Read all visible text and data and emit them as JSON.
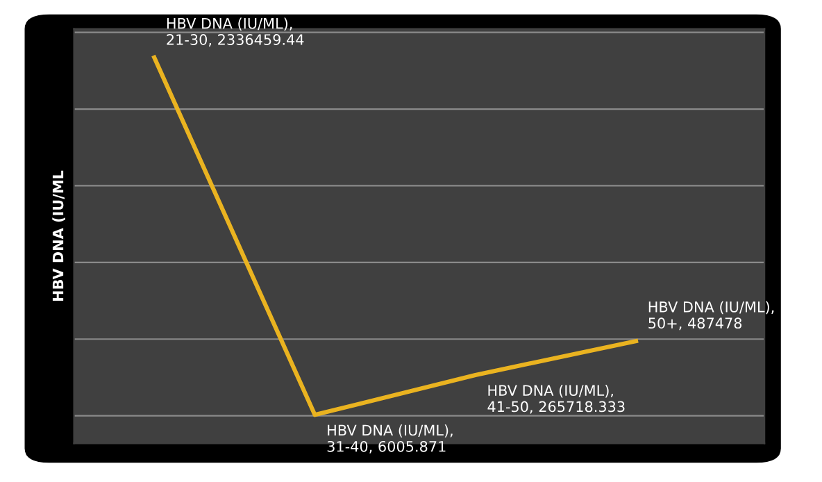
{
  "chart_data": {
    "type": "line",
    "ylabel": "HBV DNA (IU/ML",
    "categories": [
      null,
      null,
      null,
      null
    ],
    "series": [
      {
        "color": "#eab320",
        "values": [
          2336459.44,
          6005.871,
          265718.333,
          487478
        ],
        "value_labels": [
          "HBV DNA (IU/ML),\n21-30, 2336459.44",
          "HBV DNA (IU/ML),\n31-40, 6005.871",
          "HBV DNA (IU/ML),\n41-50, 265718.333",
          "HBV DNA (IU/ML),\n50+, 487478"
        ]
      }
    ],
    "grid": "y",
    "tick_labels": false,
    "marker": "none",
    "line_style": "solid",
    "legend": false
  }
}
